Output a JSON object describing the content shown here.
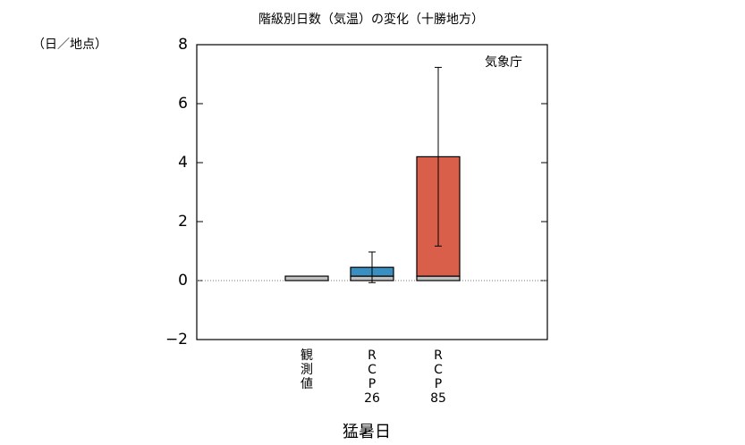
{
  "chart_data": {
    "type": "bar",
    "title": "階級別日数（気温）の変化（十勝地方）",
    "y_unit": "（日／地点）",
    "annotation": "気象庁",
    "xlabel": "猛暑日",
    "categories": [
      "観測値",
      "RCP26",
      "RCP85"
    ],
    "stacked": true,
    "series": [
      {
        "color": "#c0c0c0",
        "values": [
          0.15,
          0.15,
          0.15
        ]
      },
      {
        "color": "#3a8fc0",
        "values": [
          null,
          0.3,
          null
        ]
      },
      {
        "color": "#d95f4a",
        "values": [
          null,
          null,
          4.05
        ]
      }
    ],
    "errors": [
      null,
      0.52,
      3.03
    ],
    "ylim": [
      -2,
      8
    ],
    "yticks": [
      {
        "value": -2,
        "label": "−2"
      },
      0,
      2,
      4,
      6,
      8
    ],
    "zero_line": true
  }
}
